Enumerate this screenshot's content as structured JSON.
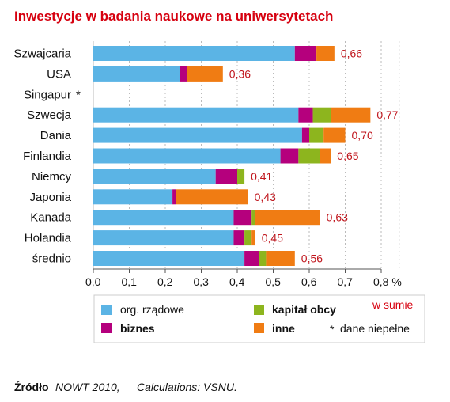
{
  "chart_data": {
    "type": "bar",
    "orientation": "horizontal",
    "stacked": true,
    "title": "Inwestycje w badania naukowe na uniwersytetach",
    "categories": [
      "Szwajcaria",
      "USA",
      "Singapur",
      "Szwecja",
      "Dania",
      "Finlandia",
      "Niemcy",
      "Japonia",
      "Kanada",
      "Holandia",
      "średnio"
    ],
    "category_marks": [
      "",
      "",
      "*",
      "",
      "",
      "",
      "",
      "",
      "",
      "",
      ""
    ],
    "series": [
      {
        "name": "org. rządowe",
        "color": "#5bb4e5",
        "values": [
          0.56,
          0.24,
          null,
          0.57,
          0.58,
          0.52,
          0.34,
          0.22,
          0.39,
          0.39,
          0.42
        ]
      },
      {
        "name": "biznes",
        "color": "#b5007d",
        "values": [
          0.06,
          0.02,
          null,
          0.04,
          0.02,
          0.05,
          0.06,
          0.01,
          0.05,
          0.03,
          0.04
        ]
      },
      {
        "name": "kapitał obcy",
        "color": "#8db51e",
        "values": [
          0.0,
          0.0,
          null,
          0.05,
          0.04,
          0.06,
          0.02,
          0.0,
          0.01,
          0.02,
          0.02
        ]
      },
      {
        "name": "inne",
        "color": "#f07c13",
        "values": [
          0.05,
          0.1,
          null,
          0.11,
          0.06,
          0.03,
          0.0,
          0.2,
          0.18,
          0.01,
          0.08
        ]
      }
    ],
    "totals": [
      "0,66",
      "0,36",
      "",
      "0,77",
      "0,70",
      "0,65",
      "0,41",
      "0,43",
      "0,63",
      "0,45",
      "0,56"
    ],
    "xlim": [
      0,
      0.8
    ],
    "xticks": [
      "0,0",
      "0,1",
      "0,2",
      "0,3",
      "0,4",
      "0,5",
      "0,6",
      "0,7",
      "0,8 %"
    ],
    "grid": true,
    "legend": {
      "position": "bottom",
      "items": [
        {
          "label": "org. rządowe",
          "color": "#5bb4e5"
        },
        {
          "label": "biznes",
          "color": "#b5007d"
        },
        {
          "label": "kapitał obcy",
          "color": "#8db51e"
        },
        {
          "label": "inne",
          "color": "#f07c13"
        }
      ],
      "note_total": "w sumie",
      "note_star": "*",
      "note_partial": "dane niepełne"
    }
  },
  "source": {
    "label": "Źródło",
    "text1": "NOWT 2010,",
    "text2": "Calculations: VSNU."
  }
}
